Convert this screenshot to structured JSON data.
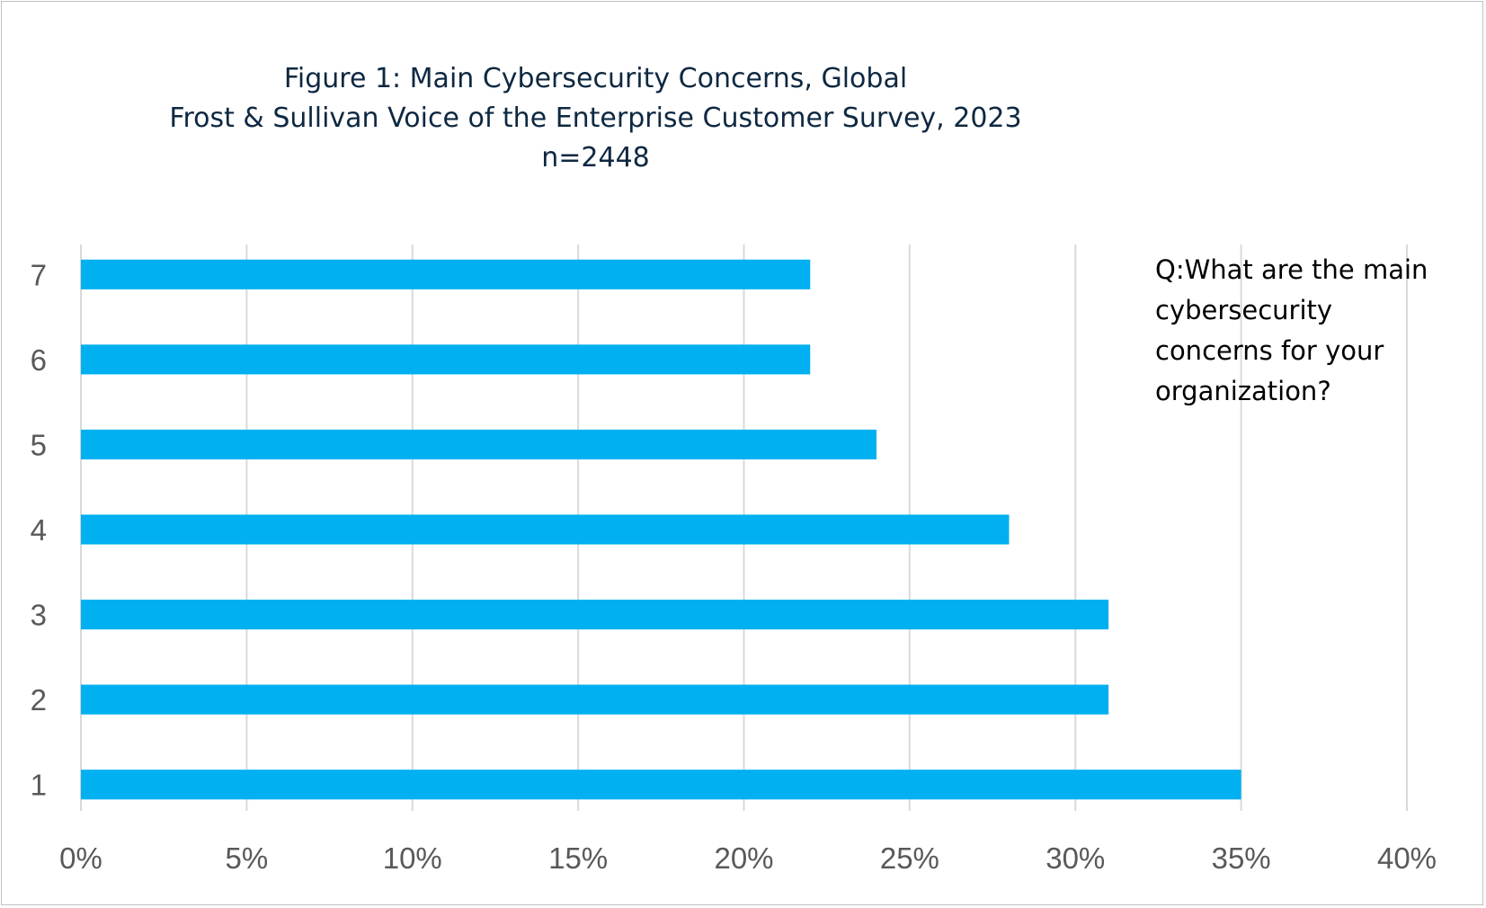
{
  "chart_data": {
    "type": "bar",
    "orientation": "horizontal",
    "title": [
      "Figure 1: Main Cybersecurity Concerns, Global",
      "Frost & Sullivan Voice of the Enterprise Customer Survey, 2023",
      "n=2448"
    ],
    "annotation": [
      "Q:What are the main",
      "cybersecurity",
      "concerns for your",
      "organization?"
    ],
    "categories": [
      "1",
      "2",
      "3",
      "4",
      "5",
      "6",
      "7"
    ],
    "values": [
      0.35,
      0.31,
      0.31,
      0.28,
      0.24,
      0.22,
      0.22
    ],
    "xlim": [
      0,
      0.4
    ],
    "xticks": [
      "0%",
      "5%",
      "10%",
      "15%",
      "20%",
      "25%",
      "30%",
      "35%",
      "40%"
    ],
    "grid": true,
    "legend": "none",
    "bar_color": "#00b0f0",
    "grid_color": "#d9d9d9"
  }
}
